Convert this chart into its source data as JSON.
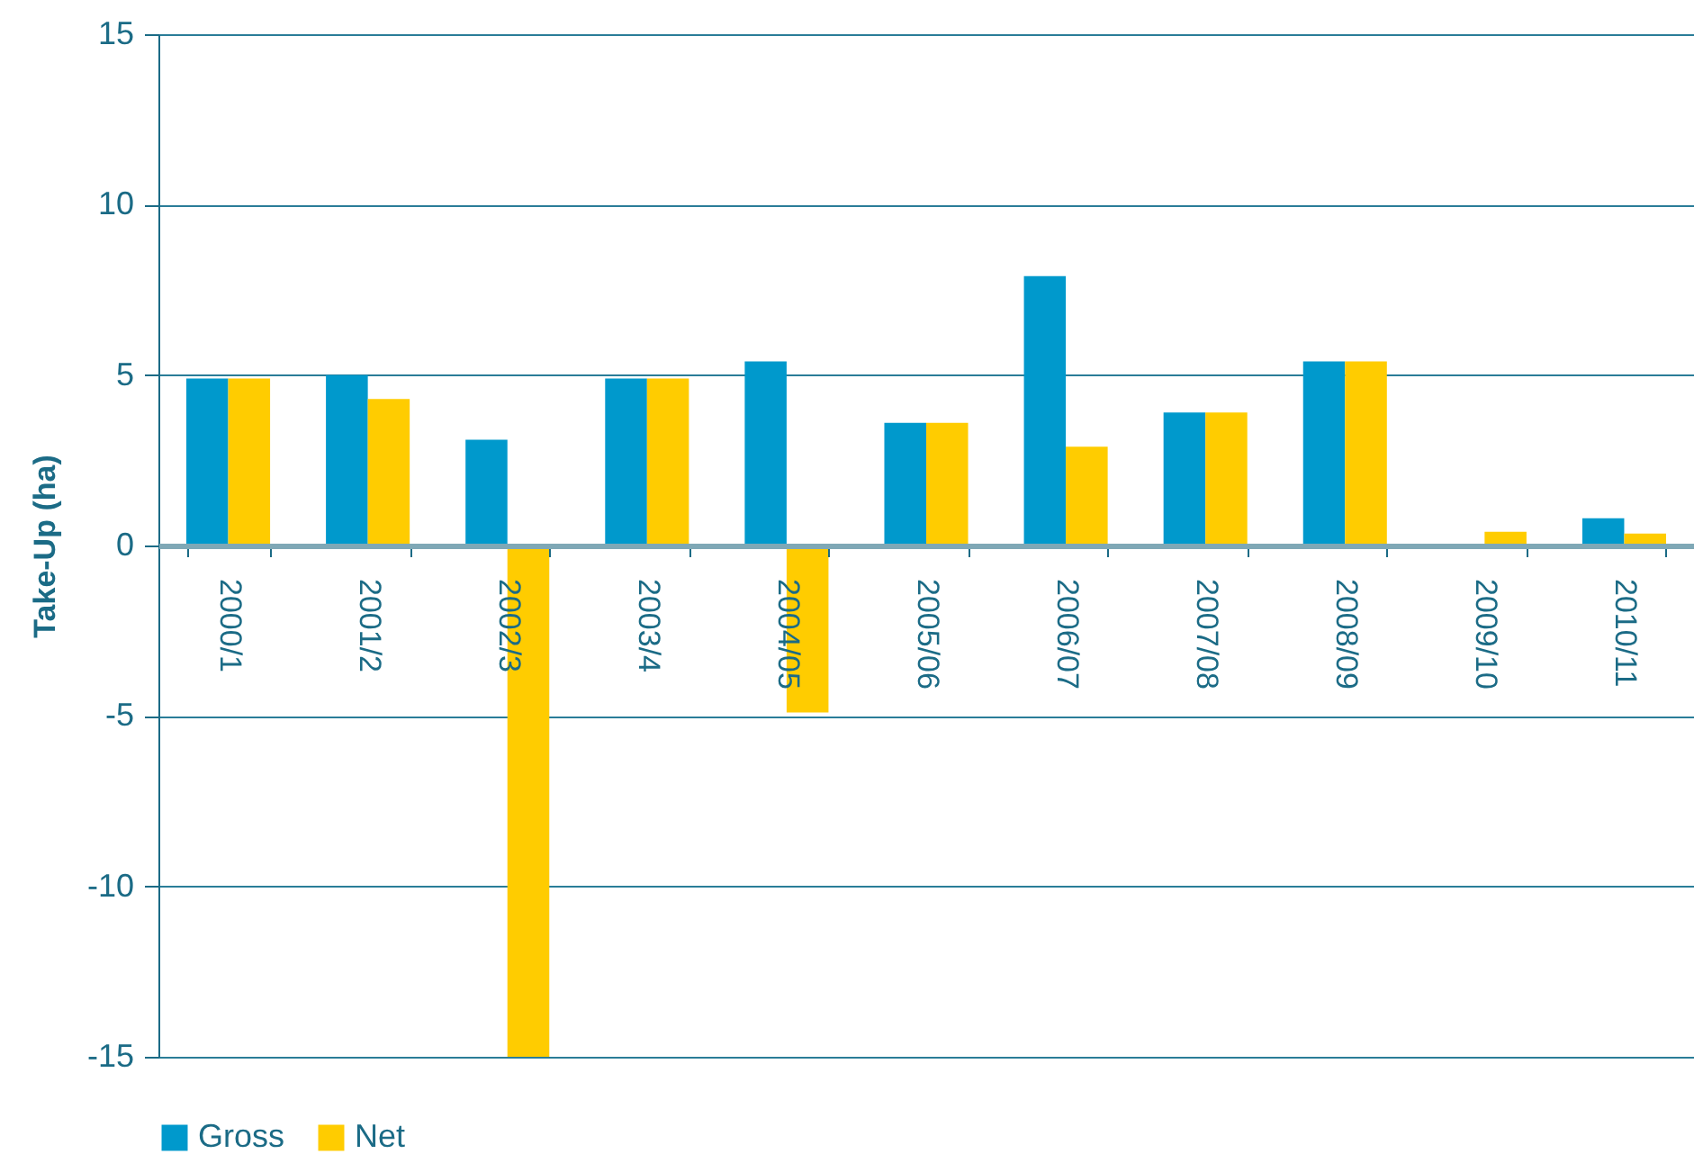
{
  "chart_data": {
    "type": "bar",
    "ylabel": "Take-Up (ha)",
    "categories": [
      "2000/1",
      "2001/2",
      "2002/3",
      "2003/4",
      "2004/05",
      "2005/06",
      "2006/07",
      "2007/08",
      "2008/09",
      "2009/10",
      "2010/11"
    ],
    "series": [
      {
        "name": "Gross",
        "color": "#0099cc",
        "values": [
          4.9,
          5.0,
          3.1,
          4.9,
          5.4,
          3.6,
          7.9,
          3.9,
          5.4,
          null,
          0.8
        ]
      },
      {
        "name": "Net",
        "color": "#ffcc00",
        "values": [
          4.9,
          4.3,
          -15,
          4.9,
          -4.9,
          3.6,
          2.9,
          3.9,
          5.4,
          0.4,
          0.35
        ]
      }
    ],
    "ylim": [
      -15,
      15
    ],
    "yticks": [
      -15,
      -10,
      -5,
      0,
      5,
      10,
      15
    ],
    "grid": "y",
    "legend": "bottom"
  }
}
